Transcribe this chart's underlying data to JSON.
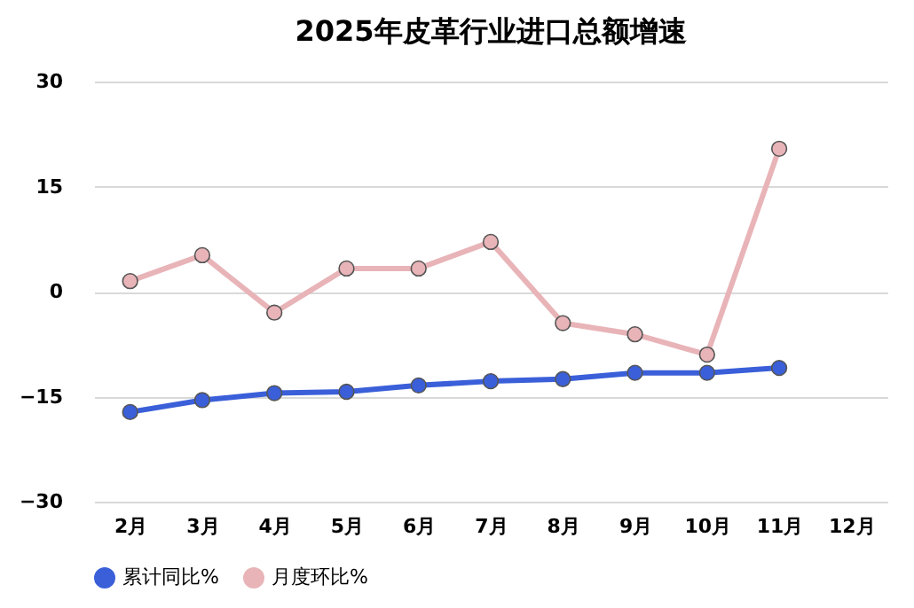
{
  "chart_data": {
    "type": "line",
    "title": "2025年皮革行业进口总额增速",
    "categories": [
      "2月",
      "3月",
      "4月",
      "5月",
      "6月",
      "7月",
      "8月",
      "9月",
      "10月",
      "11月",
      "12月"
    ],
    "series": [
      {
        "name": "累计同比%",
        "color": "#3a5fd9",
        "values": [
          -17.2,
          -15.5,
          -14.5,
          -14.3,
          -13.4,
          -12.8,
          -12.5,
          -11.6,
          -11.6,
          -10.9,
          null
        ]
      },
      {
        "name": "月度环比%",
        "color": "#e8b4b8",
        "values": [
          1.5,
          5.2,
          -3.0,
          3.3,
          3.3,
          7.1,
          -4.5,
          -6.1,
          -9.0,
          20.4,
          null
        ]
      }
    ],
    "ylim": [
      -30,
      30
    ],
    "yticks": [
      -30,
      -15,
      0,
      15,
      30
    ],
    "grid": "y",
    "legend": "bottom",
    "marker": "circle",
    "line_style": "solid"
  }
}
